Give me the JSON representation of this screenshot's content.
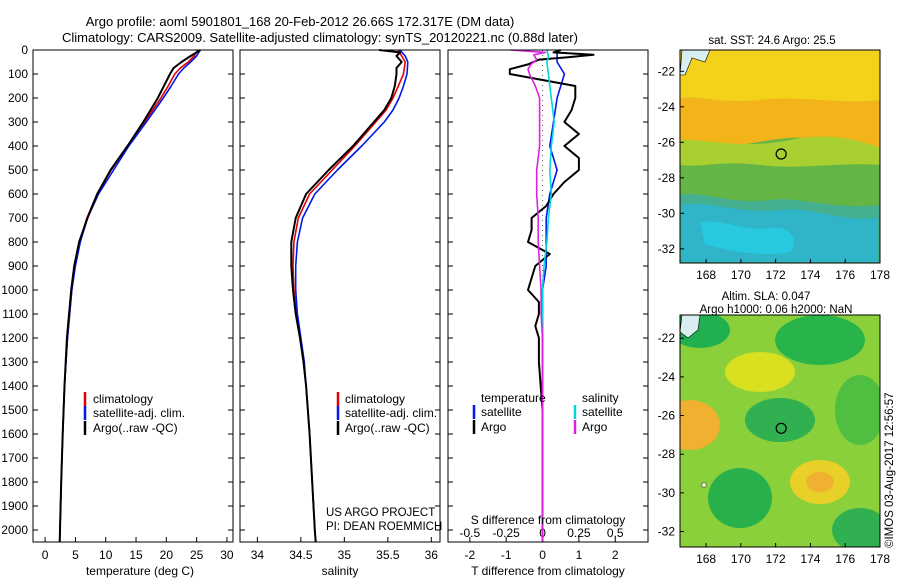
{
  "title": {
    "line1": "Argo profile: aoml 5901801_168 20-Feb-2012 26.66S 172.317E (DM data)",
    "line2": "Climatology: CARS2009. Satellite-adjusted climatology: synTS_20120221.nc (0.88d later)"
  },
  "colors": {
    "climatology": "#e00000",
    "satellite": "#0018e8",
    "argo": "#000000",
    "salinity_satellite": "#00d8d8",
    "salinity_argo": "#e020e0"
  },
  "annotations": {
    "project": "US ARGO PROJECT",
    "pi": "PI: DEAN ROEMMICH",
    "imos": "©IMOS 03-Aug-2017 12:56:57"
  },
  "maps": {
    "sst_title": "sat. SST: 24.6  Argo: 25.5",
    "sla_title_1": "Altim. SLA: 0.047",
    "sla_title_2": "Argo h1000: 0.06 h2000: NaN",
    "lon_ticks": [
      168,
      170,
      172,
      174,
      176,
      178
    ],
    "lat_ticks": [
      -22,
      -24,
      -26,
      -28,
      -30,
      -32
    ],
    "xlim": [
      166.5,
      178
    ],
    "ylim": [
      -32.8,
      -20.8
    ],
    "float_position": {
      "lon": 172.317,
      "lat": -26.66
    }
  },
  "chart_data": [
    {
      "type": "line",
      "name": "temperature",
      "xlabel": "temperature (deg C)",
      "ylabel": "",
      "xlim": [
        -2,
        31
      ],
      "ylim": [
        2050,
        0
      ],
      "xticks": [
        0,
        5,
        10,
        15,
        20,
        25,
        30
      ],
      "yticks": [
        0,
        100,
        200,
        300,
        400,
        500,
        600,
        700,
        800,
        900,
        1000,
        1100,
        1200,
        1300,
        1400,
        1500,
        1600,
        1700,
        1800,
        1900,
        2000
      ],
      "legend": [
        "climatology",
        "satellite-adj. clim.",
        "Argo(..raw -QC)"
      ],
      "legend_placement": "lower-right",
      "series": [
        {
          "name": "climatology",
          "depth": [
            0,
            25,
            50,
            75,
            100,
            150,
            200,
            300,
            400,
            500,
            600,
            700,
            800,
            900,
            1000,
            1200,
            1400,
            1600,
            1800,
            2000,
            2050
          ],
          "values": [
            25.2,
            24.6,
            23.6,
            22.3,
            21.4,
            20.3,
            19.1,
            16.4,
            13.6,
            10.9,
            8.6,
            6.9,
            5.7,
            4.9,
            4.4,
            3.7,
            3.2,
            2.9,
            2.65,
            2.45,
            2.4
          ]
        },
        {
          "name": "satellite-adj. clim.",
          "depth": [
            0,
            25,
            50,
            75,
            100,
            150,
            200,
            300,
            400,
            500,
            600,
            700,
            800,
            900,
            1000,
            1200,
            1400,
            1600,
            1800,
            2000,
            2050
          ],
          "values": [
            25.6,
            25.0,
            24.0,
            22.9,
            22.0,
            20.8,
            19.5,
            16.7,
            13.8,
            11.3,
            8.8,
            7.0,
            5.8,
            5.0,
            4.4,
            3.7,
            3.2,
            2.9,
            2.65,
            2.45,
            2.4
          ]
        },
        {
          "name": "Argo(..raw -QC)",
          "depth": [
            0,
            10,
            25,
            50,
            75,
            100,
            150,
            200,
            300,
            400,
            500,
            600,
            700,
            800,
            900,
            1000,
            1200,
            1400,
            1600,
            1800,
            2000,
            2050
          ],
          "values": [
            25.6,
            25.0,
            24.0,
            22.5,
            21.2,
            20.6,
            19.6,
            18.6,
            16.2,
            13.6,
            10.8,
            8.6,
            7.0,
            5.6,
            4.8,
            4.3,
            3.6,
            3.2,
            2.9,
            2.65,
            2.45,
            2.4
          ]
        }
      ]
    },
    {
      "type": "line",
      "name": "salinity",
      "xlabel": "salinity",
      "ylabel": "",
      "xlim": [
        33.8,
        36.1
      ],
      "ylim": [
        2050,
        0
      ],
      "xticks": [
        34,
        34.5,
        35,
        35.5,
        36
      ],
      "legend": [
        "climatology",
        "satellite-adj. clim.",
        "Argo(..raw -QC)"
      ],
      "legend_placement": "lower-right",
      "series": [
        {
          "name": "climatology",
          "depth": [
            0,
            25,
            50,
            100,
            150,
            200,
            250,
            300,
            400,
            500,
            600,
            700,
            800,
            900,
            1000,
            1100,
            1200,
            1300,
            1400,
            1600,
            1800,
            2000,
            2050
          ],
          "values": [
            35.62,
            35.66,
            35.7,
            35.68,
            35.62,
            35.56,
            35.48,
            35.36,
            35.12,
            34.86,
            34.6,
            34.47,
            34.42,
            34.41,
            34.42,
            34.45,
            34.49,
            34.53,
            34.56,
            34.6,
            34.63,
            34.66,
            34.67
          ]
        },
        {
          "name": "satellite-adj. clim.",
          "depth": [
            0,
            25,
            50,
            100,
            150,
            200,
            250,
            300,
            400,
            500,
            600,
            700,
            800,
            900,
            1000,
            1100,
            1200,
            1300,
            1400,
            1600,
            1800,
            2000,
            2050
          ],
          "values": [
            35.64,
            35.7,
            35.73,
            35.72,
            35.68,
            35.63,
            35.56,
            35.46,
            35.2,
            34.92,
            34.66,
            34.52,
            34.46,
            34.44,
            34.44,
            34.46,
            34.5,
            34.54,
            34.56,
            34.6,
            34.63,
            34.66,
            34.67
          ]
        },
        {
          "name": "Argo(..raw -QC)",
          "depth": [
            0,
            10,
            25,
            50,
            75,
            100,
            150,
            200,
            250,
            300,
            400,
            500,
            600,
            700,
            800,
            900,
            1000,
            1100,
            1200,
            1300,
            1400,
            1600,
            1800,
            2000,
            2050
          ],
          "values": [
            35.4,
            35.64,
            35.6,
            35.66,
            35.6,
            35.6,
            35.58,
            35.54,
            35.46,
            35.34,
            35.1,
            34.82,
            34.56,
            34.44,
            34.39,
            34.39,
            34.41,
            34.44,
            34.49,
            34.53,
            34.56,
            34.6,
            34.63,
            34.66,
            34.67
          ]
        }
      ]
    },
    {
      "type": "line",
      "name": "differences",
      "xlabel": "T difference from climatology",
      "x2label": "S difference from climatology",
      "xlim": [
        -2.6,
        2.9
      ],
      "x2lim": [
        -0.65,
        0.725
      ],
      "ylim": [
        2050,
        0
      ],
      "xticks": [
        -2,
        -1,
        0,
        1,
        2
      ],
      "x2ticks": [
        -0.5,
        -0.25,
        0,
        0.25,
        0.5
      ],
      "legend": {
        "temperature_heading": "temperature",
        "salinity_heading": "salinity",
        "items": [
          "satellite",
          "Argo",
          "satellite",
          "Argo"
        ]
      },
      "legend_placement": "lower-center",
      "series": [
        {
          "name": "satellite",
          "quantity": "temperature",
          "depth": [
            0,
            25,
            50,
            100,
            200,
            300,
            400,
            500,
            600,
            700,
            800,
            900,
            1000,
            1200,
            1400,
            1600,
            1800,
            2000,
            2050
          ],
          "values": [
            0.4,
            0.4,
            0.4,
            0.6,
            0.4,
            0.3,
            0.2,
            0.4,
            0.2,
            0.1,
            0.1,
            0.1,
            0.0,
            0.0,
            0.0,
            0.0,
            0.0,
            0.0,
            0.0
          ]
        },
        {
          "name": "Argo",
          "quantity": "temperature",
          "depth": [
            0,
            10,
            20,
            30,
            40,
            60,
            80,
            100,
            150,
            200,
            250,
            300,
            350,
            400,
            450,
            500,
            550,
            600,
            650,
            700,
            750,
            800,
            850,
            900,
            950,
            1000,
            1050,
            1100,
            1150,
            1200,
            1300,
            1400,
            1500,
            1600,
            1800,
            2000,
            2050
          ],
          "values": [
            0.5,
            0.3,
            1.4,
            0.7,
            -0.1,
            -0.4,
            -0.9,
            -0.9,
            0.9,
            0.9,
            0.8,
            0.6,
            1.0,
            0.6,
            1.0,
            1.0,
            0.6,
            0.3,
            0.1,
            -0.3,
            -0.3,
            -0.4,
            0.2,
            -0.2,
            -0.3,
            -0.4,
            -0.1,
            -0.1,
            -0.2,
            -0.1,
            -0.1,
            -0.05,
            0.0,
            0.0,
            0.0,
            0.0,
            0.0
          ]
        },
        {
          "name": "satellite",
          "quantity": "salinity",
          "depth": [
            0,
            25,
            50,
            100,
            200,
            300,
            400,
            500,
            600,
            700,
            800,
            900,
            1000,
            1200,
            1400,
            1600,
            1800,
            2000,
            2050
          ],
          "values": [
            0.03,
            0.04,
            0.03,
            0.04,
            0.06,
            0.08,
            0.06,
            0.05,
            0.06,
            0.04,
            0.03,
            0.01,
            0.0,
            0.0,
            0.0,
            0.0,
            0.0,
            0.0,
            0.0
          ]
        },
        {
          "name": "Argo",
          "quantity": "salinity",
          "depth": [
            0,
            10,
            20,
            40,
            60,
            80,
            100,
            150,
            200,
            300,
            400,
            500,
            600,
            700,
            800,
            900,
            1000,
            1100,
            1200,
            1300,
            1400,
            1600,
            1800,
            2000,
            2050
          ],
          "values": [
            -0.22,
            0.02,
            -0.06,
            -0.04,
            -0.08,
            -0.1,
            -0.09,
            -0.05,
            -0.02,
            -0.02,
            -0.02,
            -0.04,
            -0.04,
            -0.03,
            -0.03,
            -0.02,
            -0.01,
            -0.01,
            0.0,
            0.0,
            0.0,
            0.0,
            0.0,
            0.0,
            0.0
          ]
        }
      ]
    }
  ]
}
